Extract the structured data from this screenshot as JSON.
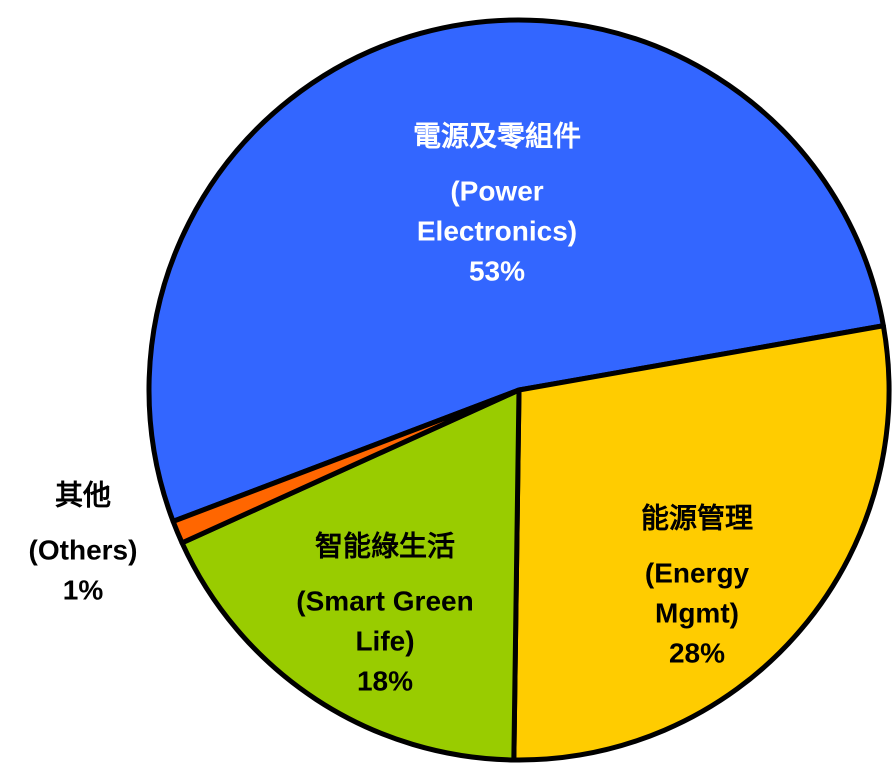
{
  "chart_data": {
    "type": "pie",
    "categories": [
      [
        "電源及零組件",
        "(Power",
        "Electronics)"
      ],
      [
        "能源管理",
        "(Energy",
        "Mgmt)"
      ],
      [
        "智能綠生活",
        "(Smart Green",
        "Life)"
      ],
      [
        "其他",
        "(Others)"
      ]
    ],
    "values": [
      53,
      28,
      18,
      1
    ],
    "value_labels": [
      "53%",
      "28%",
      "18%",
      "1%"
    ],
    "colors": [
      "#3366ff",
      "#ffcc00",
      "#99cc00",
      "#ff6600"
    ]
  }
}
